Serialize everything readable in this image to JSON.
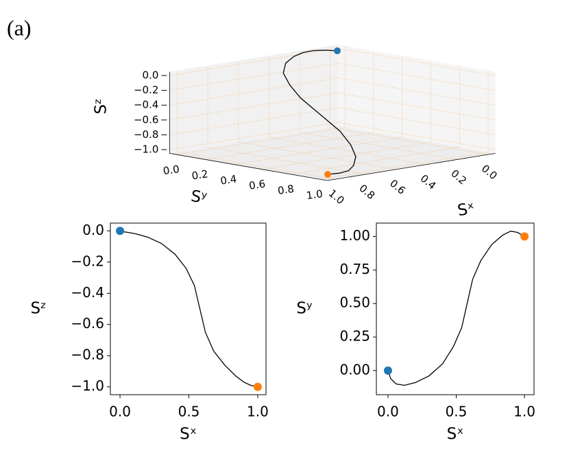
{
  "panel_label": "(a)",
  "chart_data": [
    {
      "type": "line3d",
      "x": [
        0,
        0.02,
        0.06,
        0.12,
        0.2,
        0.3,
        0.4,
        0.48,
        0.54,
        0.58,
        0.62,
        0.68,
        0.76,
        0.84,
        0.9,
        0.95,
        1.0
      ],
      "y": [
        0,
        -0.06,
        -0.1,
        -0.11,
        -0.09,
        -0.04,
        0.05,
        0.18,
        0.32,
        0.5,
        0.68,
        0.82,
        0.94,
        1.01,
        1.04,
        1.03,
        1.0
      ],
      "z": [
        0,
        -0.005,
        -0.01,
        -0.02,
        -0.04,
        -0.08,
        -0.15,
        -0.24,
        -0.35,
        -0.5,
        -0.65,
        -0.77,
        -0.86,
        -0.93,
        -0.97,
        -0.99,
        -1.0
      ],
      "xlabel": "Sˣ",
      "ylabel": "Sʸ",
      "zlabel": "Sᶻ",
      "xlim": [
        -0.05,
        1.05
      ],
      "ylim": [
        -0.05,
        1.05
      ],
      "zlim": [
        -1.05,
        0.05
      ],
      "xticks": [
        {
          "value": 0,
          "label": "0.0"
        },
        {
          "value": 0.2,
          "label": "0.2"
        },
        {
          "value": 0.4,
          "label": "0.4"
        },
        {
          "value": 0.6,
          "label": "0.6"
        },
        {
          "value": 0.8,
          "label": "0.8"
        },
        {
          "value": 1,
          "label": "1.0"
        }
      ],
      "yticks": [
        {
          "value": 0,
          "label": "0.0"
        },
        {
          "value": 0.2,
          "label": "0.2"
        },
        {
          "value": 0.4,
          "label": "0.4"
        },
        {
          "value": 0.6,
          "label": "0.6"
        },
        {
          "value": 0.8,
          "label": "0.8"
        },
        {
          "value": 1,
          "label": "1.0"
        }
      ],
      "zticks": [
        {
          "value": 0,
          "label": "0.0"
        },
        {
          "value": -0.2,
          "label": "−0.2"
        },
        {
          "value": -0.4,
          "label": "−0.4"
        },
        {
          "value": -0.6,
          "label": "−0.6"
        },
        {
          "value": -0.8,
          "label": "−0.8"
        },
        {
          "value": -1,
          "label": "−1.0"
        }
      ],
      "grid": true,
      "grid_color": "#f6c48e",
      "line_color": "#000000",
      "start_color": "#1f77b4",
      "end_color": "#ff7f0e"
    },
    {
      "type": "line",
      "x": [
        0,
        0.02,
        0.06,
        0.12,
        0.2,
        0.3,
        0.4,
        0.48,
        0.54,
        0.58,
        0.62,
        0.68,
        0.76,
        0.84,
        0.9,
        0.95,
        1.0
      ],
      "values": [
        0,
        -0.005,
        -0.01,
        -0.02,
        -0.04,
        -0.08,
        -0.15,
        -0.24,
        -0.35,
        -0.5,
        -0.65,
        -0.77,
        -0.86,
        -0.93,
        -0.97,
        -0.99,
        -1.0
      ],
      "xlabel": "Sˣ",
      "ylabel": "Sᶻ",
      "xlim": [
        -0.07,
        1.06
      ],
      "ylim": [
        -1.05,
        0.05
      ],
      "xticks": [
        {
          "value": 0,
          "label": "0.0"
        },
        {
          "value": 0.5,
          "label": "0.5"
        },
        {
          "value": 1,
          "label": "1.0"
        }
      ],
      "yticks": [
        {
          "value": 0,
          "label": "0.0"
        },
        {
          "value": -0.2,
          "label": "−0.2"
        },
        {
          "value": -0.4,
          "label": "−0.4"
        },
        {
          "value": -0.6,
          "label": "−0.6"
        },
        {
          "value": -0.8,
          "label": "−0.8"
        },
        {
          "value": -1,
          "label": "−1.0"
        }
      ],
      "line_color": "#000000",
      "start_color": "#1f77b4",
      "end_color": "#ff7f0e"
    },
    {
      "type": "line",
      "x": [
        0,
        0.02,
        0.06,
        0.12,
        0.2,
        0.3,
        0.4,
        0.48,
        0.54,
        0.58,
        0.62,
        0.68,
        0.76,
        0.84,
        0.9,
        0.95,
        1.0
      ],
      "values": [
        0,
        -0.06,
        -0.1,
        -0.11,
        -0.09,
        -0.04,
        0.05,
        0.18,
        0.32,
        0.5,
        0.68,
        0.82,
        0.94,
        1.01,
        1.04,
        1.03,
        1.0
      ],
      "xlabel": "Sˣ",
      "ylabel": "Sʸ",
      "xlim": [
        -0.085,
        1.07
      ],
      "ylim": [
        -0.18,
        1.1
      ],
      "xticks": [
        {
          "value": 0,
          "label": "0.0"
        },
        {
          "value": 0.5,
          "label": "0.5"
        },
        {
          "value": 1,
          "label": "1.0"
        }
      ],
      "yticks": [
        {
          "value": 0,
          "label": "0.00"
        },
        {
          "value": 0.25,
          "label": "0.25"
        },
        {
          "value": 0.5,
          "label": "0.50"
        },
        {
          "value": 0.75,
          "label": "0.75"
        },
        {
          "value": 1,
          "label": "1.00"
        }
      ],
      "line_color": "#000000",
      "start_color": "#1f77b4",
      "end_color": "#ff7f0e"
    }
  ]
}
